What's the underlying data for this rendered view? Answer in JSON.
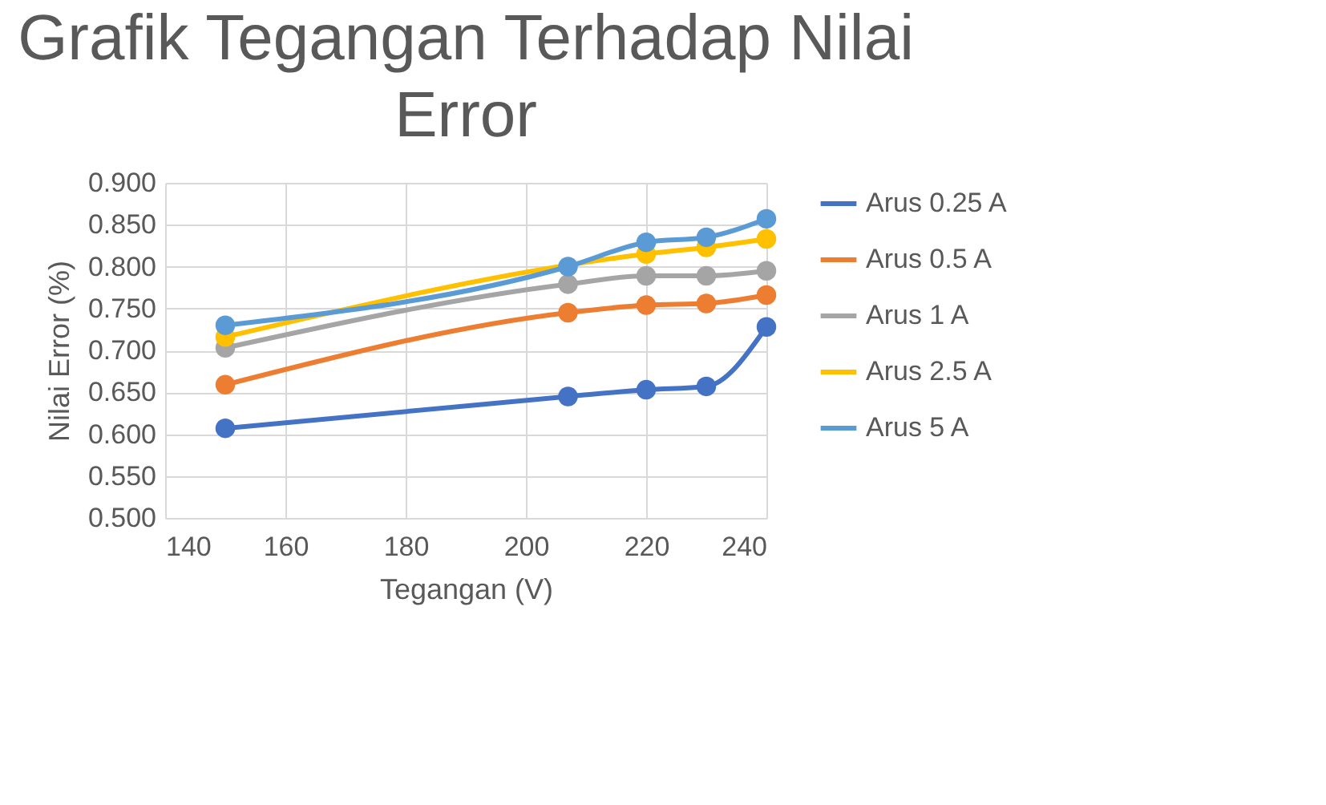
{
  "chart_data": {
    "type": "line",
    "title": "Grafik Tegangan Terhadap Nilai Error",
    "xlabel": "Tegangan (V)",
    "ylabel": "Nilai Error (%)",
    "x": [
      150,
      207,
      220,
      230,
      240
    ],
    "series": [
      {
        "name": "Arus 0.25 A",
        "color": "#4472c4",
        "values": [
          0.607,
          0.645,
          0.653,
          0.657,
          0.728
        ]
      },
      {
        "name": "Arus 0.5 A",
        "color": "#ed7d31",
        "values": [
          0.659,
          0.745,
          0.754,
          0.756,
          0.766
        ]
      },
      {
        "name": "Arus 1 A",
        "color": "#a5a5a5",
        "values": [
          0.703,
          0.779,
          0.789,
          0.789,
          0.795
        ]
      },
      {
        "name": "Arus 2.5 A",
        "color": "#ffc000",
        "values": [
          0.716,
          null,
          0.815,
          0.823,
          0.833
        ]
      },
      {
        "name": "Arus 5 A",
        "color": "#5b9bd5",
        "values": [
          0.73,
          0.8,
          0.829,
          0.835,
          0.857
        ]
      }
    ],
    "xlim": [
      140,
      240
    ],
    "xticks": [
      140,
      160,
      180,
      200,
      220,
      240
    ],
    "ylim": [
      0.5,
      0.9
    ],
    "yticks": [
      {
        "value": 0.5,
        "label": "0.500"
      },
      {
        "value": 0.55,
        "label": "0.550"
      },
      {
        "value": 0.6,
        "label": "0.600"
      },
      {
        "value": 0.65,
        "label": "0.650"
      },
      {
        "value": 0.7,
        "label": "0.700"
      },
      {
        "value": 0.75,
        "label": "0.750"
      },
      {
        "value": 0.8,
        "label": "0.800"
      },
      {
        "value": 0.85,
        "label": "0.850"
      },
      {
        "value": 0.9,
        "label": "0.900"
      }
    ],
    "grid": true,
    "legend": "right",
    "marker": "circle",
    "line_style": "solid"
  }
}
